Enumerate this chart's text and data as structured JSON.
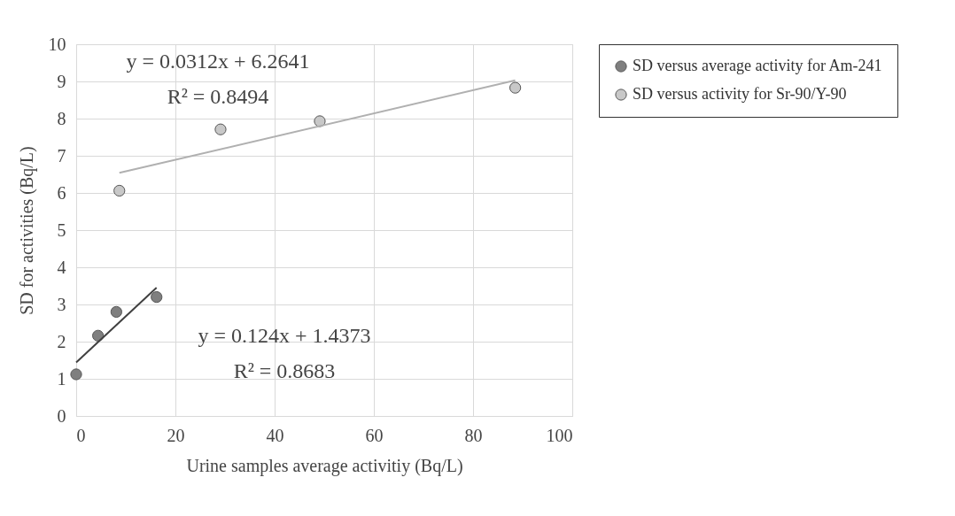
{
  "chart_data": {
    "type": "scatter",
    "xlabel": "Urine samples average activitiy (Bq/L)",
    "ylabel": "SD for activities (Bq/L)",
    "xlim": [
      0,
      100
    ],
    "xticks": [
      0,
      20,
      40,
      60,
      80,
      100
    ],
    "ylim": [
      0,
      10
    ],
    "yticks": [
      0,
      1,
      2,
      3,
      4,
      5,
      6,
      7,
      8,
      9,
      10
    ],
    "grid": true,
    "legend": "right",
    "series": [
      {
        "name": "SD versus average activity for Am-241",
        "color": "#7f7f7f",
        "marker": "circle",
        "x": [
          0,
          4.4,
          8.1,
          16.2
        ],
        "values": [
          1.12,
          2.16,
          2.8,
          3.2
        ]
      },
      {
        "name": "SD versus activity for Sr-90/Y-90",
        "color": "#c8c8c8",
        "marker": "circle",
        "x": [
          8.7,
          29.1,
          49.1,
          88.5
        ],
        "values": [
          6.06,
          7.71,
          7.93,
          8.83
        ]
      },
      {
        "type": "line",
        "color": "#404040",
        "x": [
          0,
          16.2
        ],
        "values": [
          1.44,
          3.45
        ]
      },
      {
        "type": "line",
        "color": "#b0b0b0",
        "x": [
          8.7,
          88.5
        ],
        "values": [
          6.54,
          9.03
        ]
      }
    ],
    "annotations": [
      "y = 0.0312x + 6.2641",
      "R² = 0.8494",
      "y = 0.124x + 1.4373",
      "R² = 0.8683"
    ]
  }
}
